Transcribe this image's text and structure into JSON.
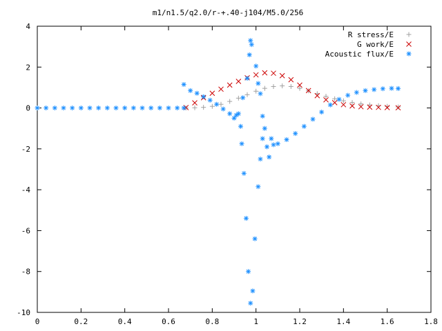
{
  "chart_data": {
    "type": "scatter",
    "title": "m1/n1.5/q2.0/r-+.40-j104/M5.0/256",
    "xlabel": "",
    "ylabel": "",
    "xlim": [
      0,
      1.8
    ],
    "ylim": [
      -10,
      4
    ],
    "x_ticks": [
      "0",
      "0.2",
      "0.4",
      "0.6",
      "0.8",
      "1",
      "1.2",
      "1.4",
      "1.6",
      "1.8"
    ],
    "y_ticks": [
      "4",
      "2",
      "0",
      "-2",
      "-4",
      "-6",
      "-8",
      "-10"
    ],
    "grid": false,
    "legend_position": "top-right",
    "series": [
      {
        "name": "R stress/E",
        "marker": "plus",
        "color": "#a0a0a0",
        "points": [
          [
            0.68,
            0
          ],
          [
            0.72,
            0.01
          ],
          [
            0.76,
            0.03
          ],
          [
            0.8,
            0.08
          ],
          [
            0.84,
            0.18
          ],
          [
            0.88,
            0.32
          ],
          [
            0.92,
            0.48
          ],
          [
            0.96,
            0.65
          ],
          [
            1.0,
            0.82
          ],
          [
            1.04,
            0.96
          ],
          [
            1.08,
            1.05
          ],
          [
            1.12,
            1.08
          ],
          [
            1.16,
            1.05
          ],
          [
            1.2,
            0.96
          ],
          [
            1.24,
            0.84
          ],
          [
            1.28,
            0.7
          ],
          [
            1.32,
            0.57
          ],
          [
            1.36,
            0.45
          ],
          [
            1.4,
            0.35
          ],
          [
            1.44,
            0.27
          ],
          [
            1.48,
            0.2
          ],
          [
            1.52,
            0.15
          ],
          [
            1.56,
            0.11
          ],
          [
            1.6,
            0.08
          ],
          [
            1.65,
            0.05
          ]
        ]
      },
      {
        "name": "G work/E",
        "marker": "cross",
        "color": "#cc0000",
        "points": [
          [
            0.68,
            0.02
          ],
          [
            0.72,
            0.25
          ],
          [
            0.76,
            0.5
          ],
          [
            0.8,
            0.72
          ],
          [
            0.84,
            0.92
          ],
          [
            0.88,
            1.12
          ],
          [
            0.92,
            1.3
          ],
          [
            0.96,
            1.48
          ],
          [
            1.0,
            1.62
          ],
          [
            1.04,
            1.72
          ],
          [
            1.08,
            1.7
          ],
          [
            1.12,
            1.58
          ],
          [
            1.16,
            1.38
          ],
          [
            1.2,
            1.12
          ],
          [
            1.24,
            0.85
          ],
          [
            1.28,
            0.6
          ],
          [
            1.32,
            0.4
          ],
          [
            1.36,
            0.26
          ],
          [
            1.4,
            0.16
          ],
          [
            1.44,
            0.1
          ],
          [
            1.48,
            0.06
          ],
          [
            1.52,
            0.04
          ],
          [
            1.56,
            0.03
          ],
          [
            1.6,
            0.02
          ],
          [
            1.65,
            0.01
          ]
        ]
      },
      {
        "name": "Acoustic flux/E",
        "marker": "star",
        "color": "#1e90ff",
        "points": [
          [
            0,
            0
          ],
          [
            0.04,
            0
          ],
          [
            0.08,
            0
          ],
          [
            0.12,
            0
          ],
          [
            0.16,
            0
          ],
          [
            0.2,
            0
          ],
          [
            0.24,
            0
          ],
          [
            0.28,
            0
          ],
          [
            0.32,
            0
          ],
          [
            0.36,
            0
          ],
          [
            0.4,
            0
          ],
          [
            0.44,
            0
          ],
          [
            0.48,
            0
          ],
          [
            0.52,
            0
          ],
          [
            0.56,
            0
          ],
          [
            0.6,
            0
          ],
          [
            0.64,
            0
          ],
          [
            0.67,
            0
          ],
          [
            0.67,
            1.15
          ],
          [
            0.7,
            0.85
          ],
          [
            0.73,
            0.72
          ],
          [
            0.76,
            0.55
          ],
          [
            0.79,
            0.38
          ],
          [
            0.82,
            0.18
          ],
          [
            0.85,
            -0.05
          ],
          [
            0.88,
            -0.28
          ],
          [
            0.9,
            -0.5
          ],
          [
            0.92,
            -0.28
          ],
          [
            0.93,
            -0.9
          ],
          [
            0.935,
            -1.75
          ],
          [
            0.945,
            -3.2
          ],
          [
            0.955,
            -5.4
          ],
          [
            0.965,
            -8.0
          ],
          [
            0.975,
            -9.55
          ],
          [
            0.985,
            -8.95
          ],
          [
            0.995,
            -6.4
          ],
          [
            1.01,
            -3.85
          ],
          [
            1.02,
            -2.5
          ],
          [
            1.03,
            -1.5
          ],
          [
            1.04,
            -1.0
          ],
          [
            1.05,
            -1.9
          ],
          [
            1.06,
            -2.4
          ],
          [
            1.07,
            -1.5
          ],
          [
            1.08,
            -1.8
          ],
          [
            1.1,
            -1.75
          ],
          [
            1.14,
            -1.55
          ],
          [
            1.18,
            -1.25
          ],
          [
            1.22,
            -0.9
          ],
          [
            1.26,
            -0.55
          ],
          [
            1.3,
            -0.2
          ],
          [
            1.34,
            0.15
          ],
          [
            1.38,
            0.42
          ],
          [
            1.42,
            0.62
          ],
          [
            1.46,
            0.76
          ],
          [
            1.5,
            0.85
          ],
          [
            1.54,
            0.9
          ],
          [
            1.58,
            0.94
          ],
          [
            1.62,
            0.96
          ],
          [
            1.65,
            0.95
          ],
          [
            0.91,
            -0.35
          ],
          [
            0.94,
            0.5
          ],
          [
            0.96,
            1.45
          ],
          [
            0.97,
            2.6
          ],
          [
            0.975,
            3.3
          ],
          [
            0.98,
            3.1
          ],
          [
            1.0,
            2.05
          ],
          [
            1.01,
            1.2
          ],
          [
            1.02,
            0.7
          ],
          [
            1.03,
            -0.4
          ]
        ]
      }
    ]
  }
}
